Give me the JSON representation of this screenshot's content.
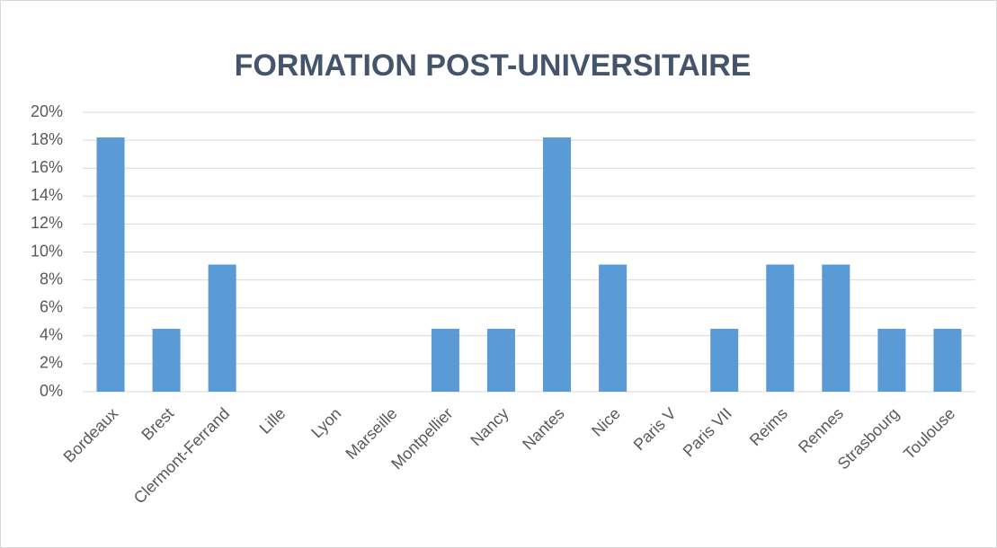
{
  "chart_data": {
    "type": "bar",
    "title": "FORMATION POST-UNIVERSITAIRE",
    "categories": [
      "Bordeaux",
      "Brest",
      "Clermont-Ferrand",
      "Lille",
      "Lyon",
      "Marseille",
      "Montpellier",
      "Nancy",
      "Nantes",
      "Nice",
      "Paris V",
      "Paris VII",
      "Reims",
      "Rennes",
      "Strasbourg",
      "Toulouse"
    ],
    "values": [
      18.2,
      4.5,
      9.1,
      0,
      0,
      0,
      4.5,
      4.5,
      18.2,
      9.1,
      0,
      4.5,
      9.1,
      9.1,
      4.5,
      4.5
    ],
    "color": "#5b9bd5",
    "ylim": [
      0,
      20
    ],
    "yticks": [
      {
        "value": 0,
        "label": "0%"
      },
      {
        "value": 2,
        "label": "2%"
      },
      {
        "value": 4,
        "label": "4%"
      },
      {
        "value": 6,
        "label": "6%"
      },
      {
        "value": 8,
        "label": "8%"
      },
      {
        "value": 10,
        "label": "10%"
      },
      {
        "value": 12,
        "label": "12%"
      },
      {
        "value": 14,
        "label": "14%"
      },
      {
        "value": 16,
        "label": "16%"
      },
      {
        "value": 18,
        "label": "18%"
      },
      {
        "value": 20,
        "label": "20%"
      }
    ],
    "grid": true
  }
}
